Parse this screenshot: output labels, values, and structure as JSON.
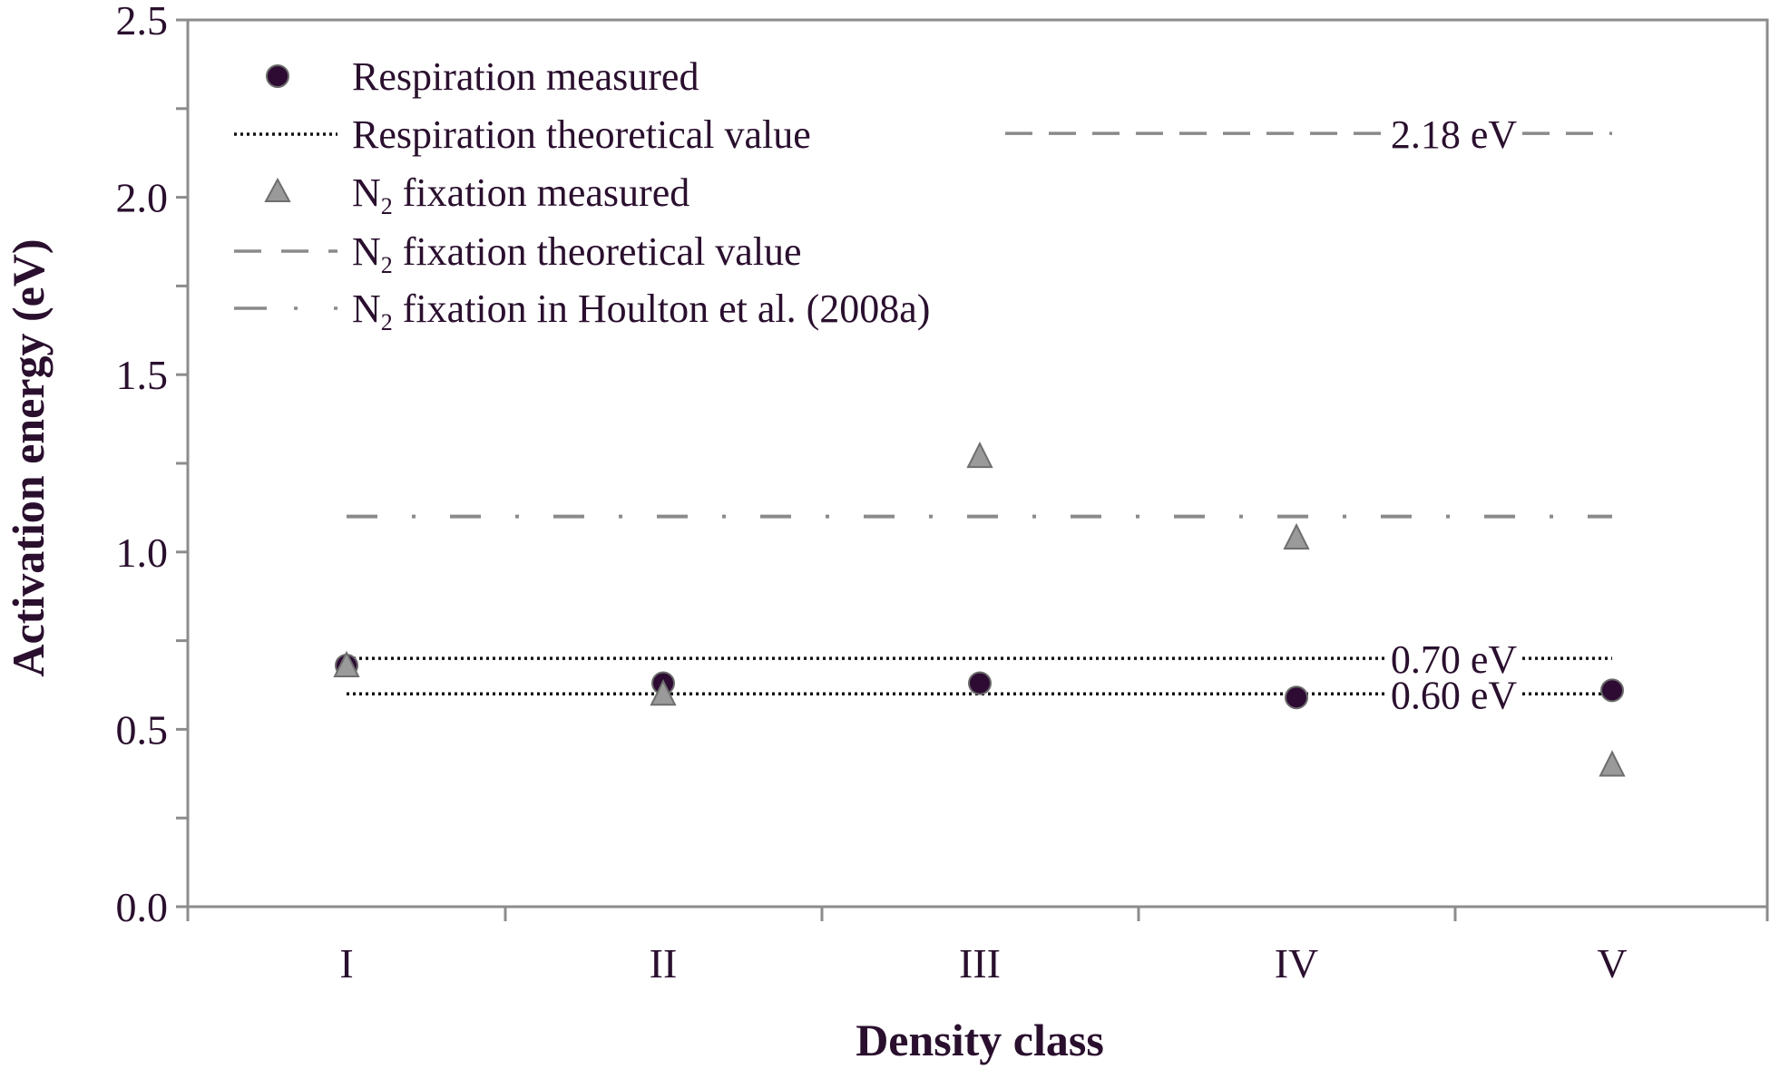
{
  "chart_data": {
    "type": "scatter",
    "title": "",
    "xlabel": "Density class",
    "ylabel": "Activation energy (eV)",
    "categories": [
      "I",
      "II",
      "III",
      "IV",
      "V"
    ],
    "ylim": [
      0,
      2.5
    ],
    "yticks": [
      "0.0",
      "0.5",
      "1.0",
      "1.5",
      "2.0",
      "2.5"
    ],
    "legend_position": "top-left",
    "grid": false,
    "series": [
      {
        "name": "Respiration measured",
        "marker": "circle",
        "color": "#2d0b33",
        "values": [
          0.68,
          0.63,
          0.63,
          0.59,
          0.61
        ]
      },
      {
        "name_main": "N",
        "name_sub": "2",
        "name_rest": " fixation measured",
        "marker": "triangle",
        "color": "#9a9a9a",
        "values": [
          0.68,
          0.6,
          1.27,
          1.04,
          0.4
        ]
      }
    ],
    "reference_lines": [
      {
        "name": "Respiration theoretical value",
        "value": 0.7,
        "label": "0.70 eV",
        "style": "dotted",
        "color": "#111111"
      },
      {
        "name": "Respiration theoretical value",
        "value": 0.6,
        "label": "0.60 eV",
        "style": "dotted",
        "color": "#111111"
      },
      {
        "name_main": "N",
        "name_sub": "2",
        "name_rest": " fixation theoretical value",
        "value": 2.18,
        "label": "2.18 eV",
        "style": "dashed",
        "color": "#8a8a8a"
      },
      {
        "name_main": "N",
        "name_sub": "2",
        "name_rest": " fixation in Houlton et al. (2008a)",
        "value": 1.1,
        "label": "",
        "style": "dashdot",
        "color": "#8a8a8a"
      }
    ],
    "legend": [
      {
        "key": "resp_meas",
        "text": "Respiration measured"
      },
      {
        "key": "resp_theo",
        "text": "Respiration theoretical value"
      },
      {
        "key": "n2_meas",
        "main": "N",
        "sub": "2",
        "rest": " fixation measured"
      },
      {
        "key": "n2_theo",
        "main": "N",
        "sub": "2",
        "rest": " fixation theoretical value"
      },
      {
        "key": "n2_houlton",
        "main": "N",
        "sub": "2",
        "rest": " fixation in Houlton et al. (2008a)"
      }
    ]
  }
}
